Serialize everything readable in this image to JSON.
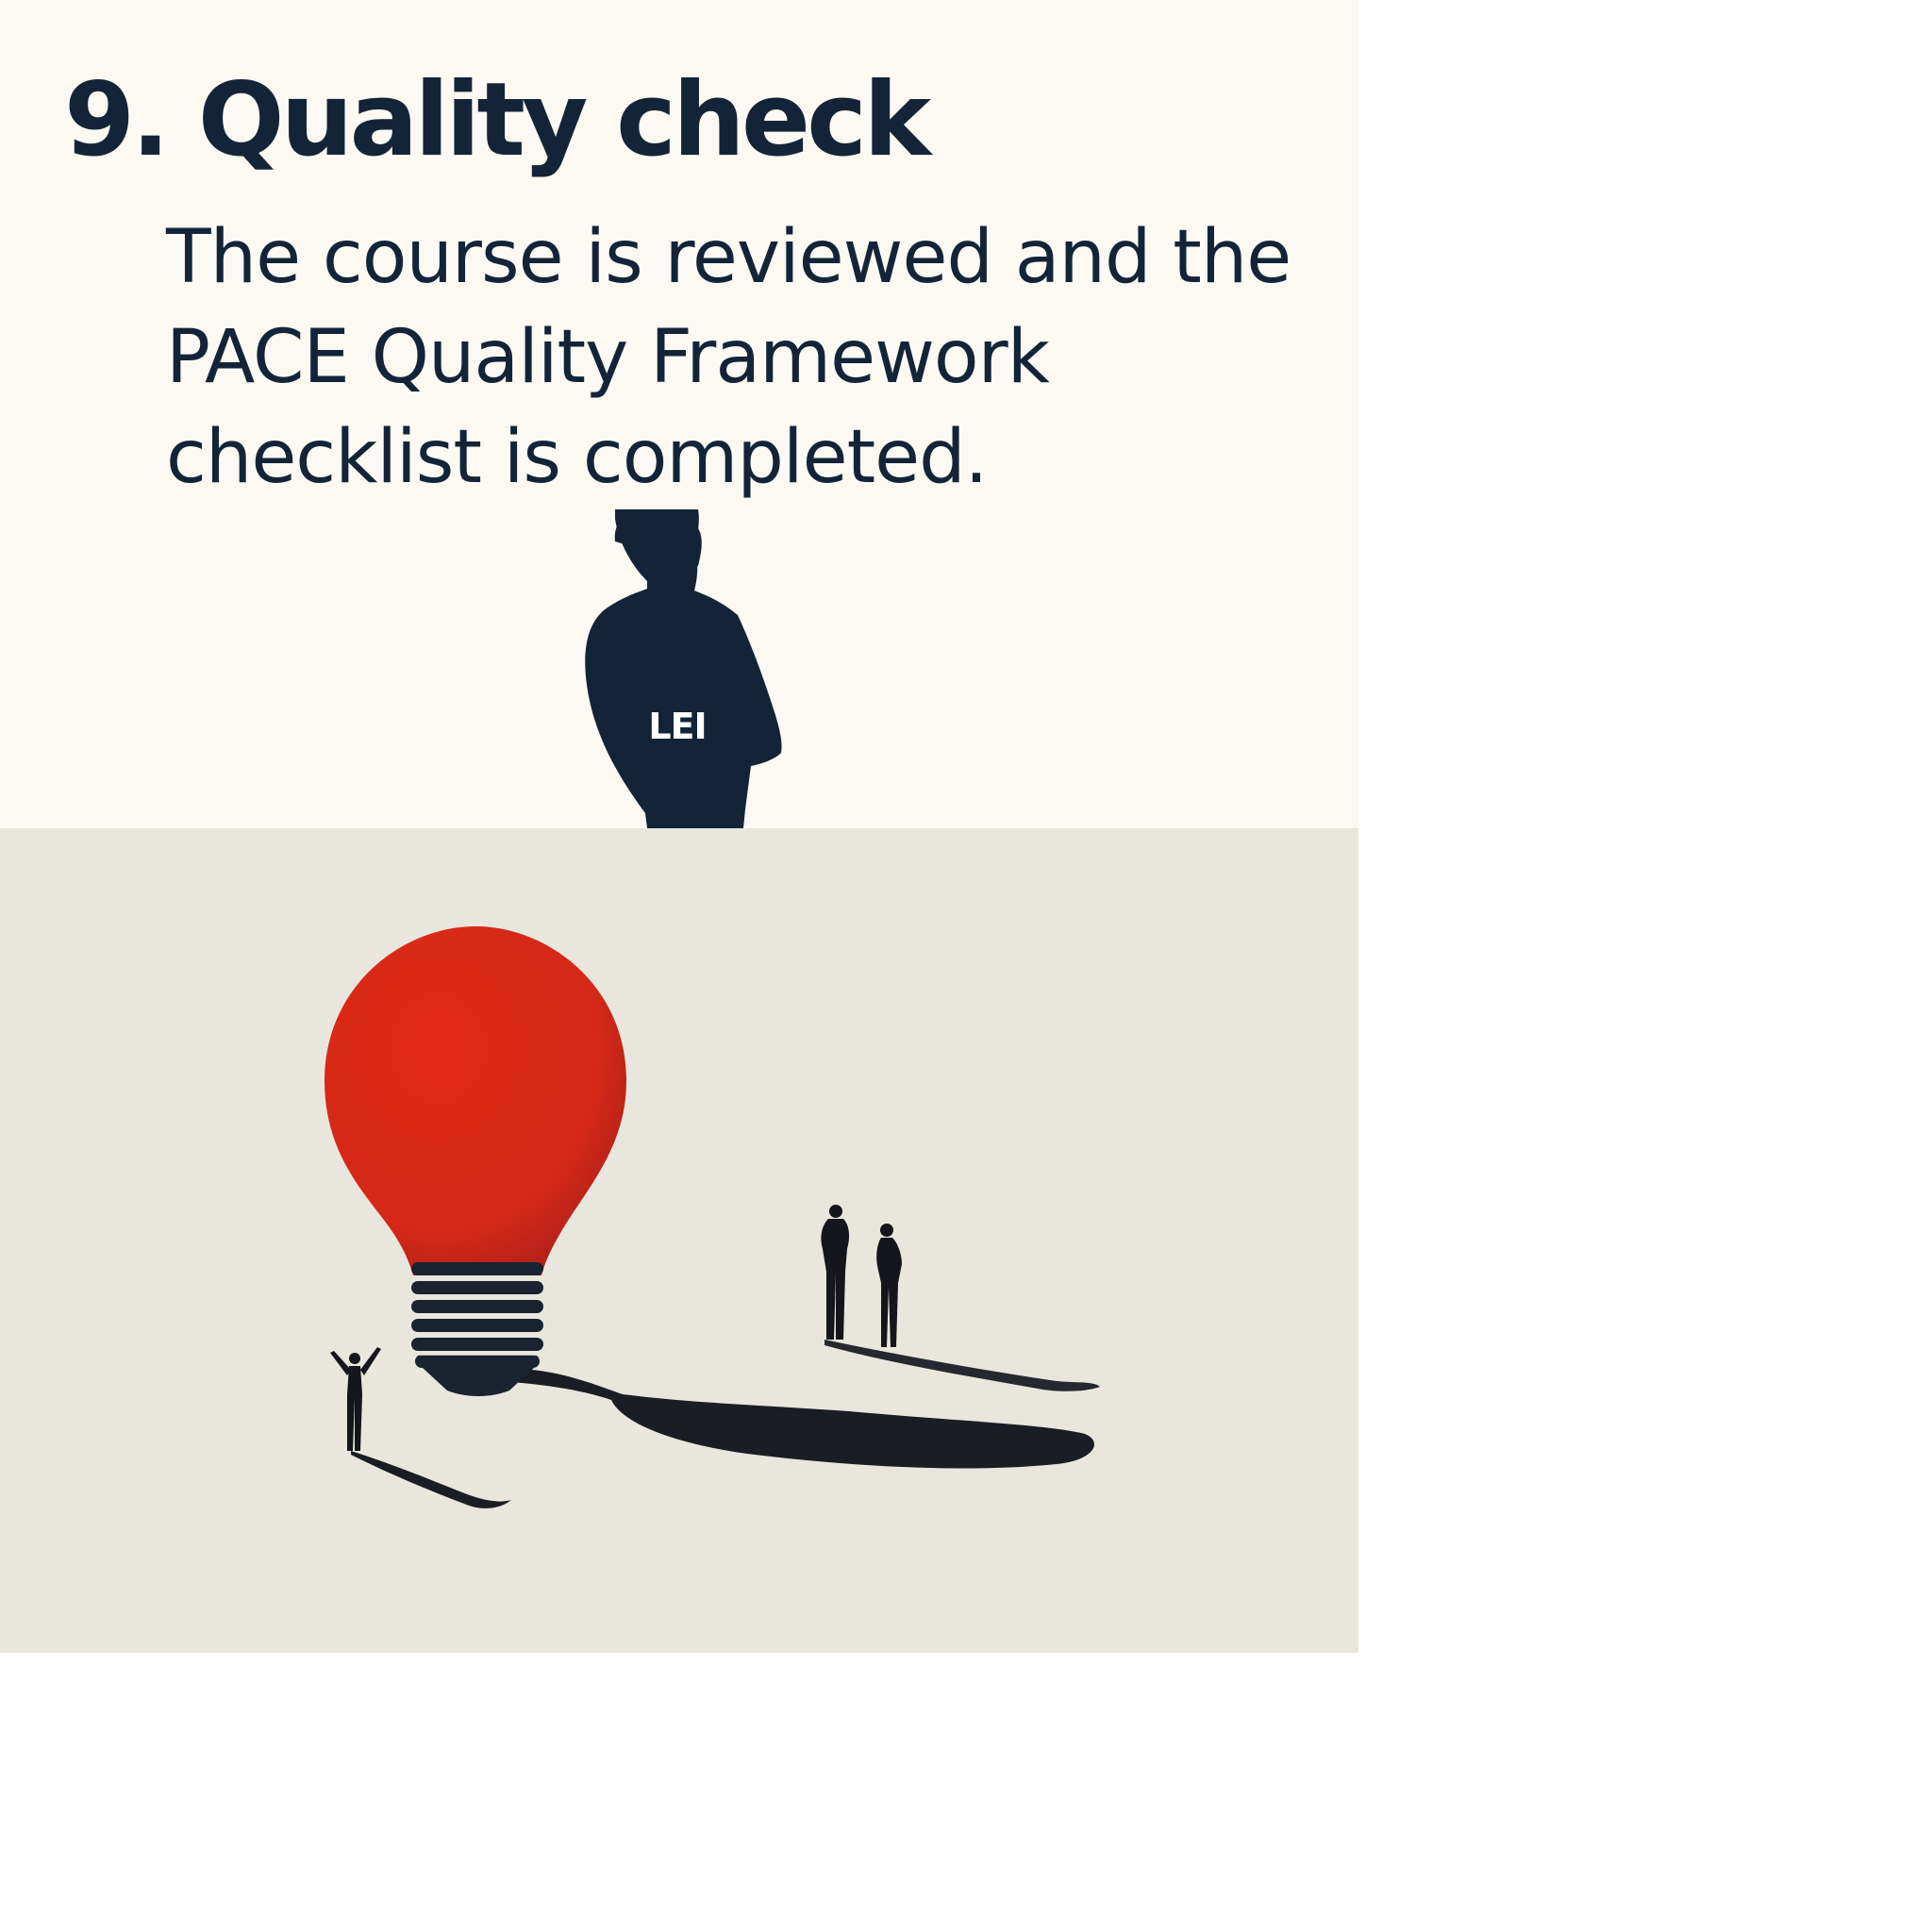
{
  "step": {
    "title": "9. Quality check",
    "description": "The course is reviewed and the PACE Quality Framework checklist is completed."
  },
  "person": {
    "badge": "LEI",
    "icon": "person-silhouette-icon"
  },
  "illustration": {
    "icon": "lightbulb-with-people-illustration"
  },
  "colors": {
    "ink": "#142438",
    "top_background": "#fbf9f2",
    "bottom_background": "#e9e6dd",
    "bulb_red": "#dd2a18",
    "shadow": "#1a1d24"
  }
}
